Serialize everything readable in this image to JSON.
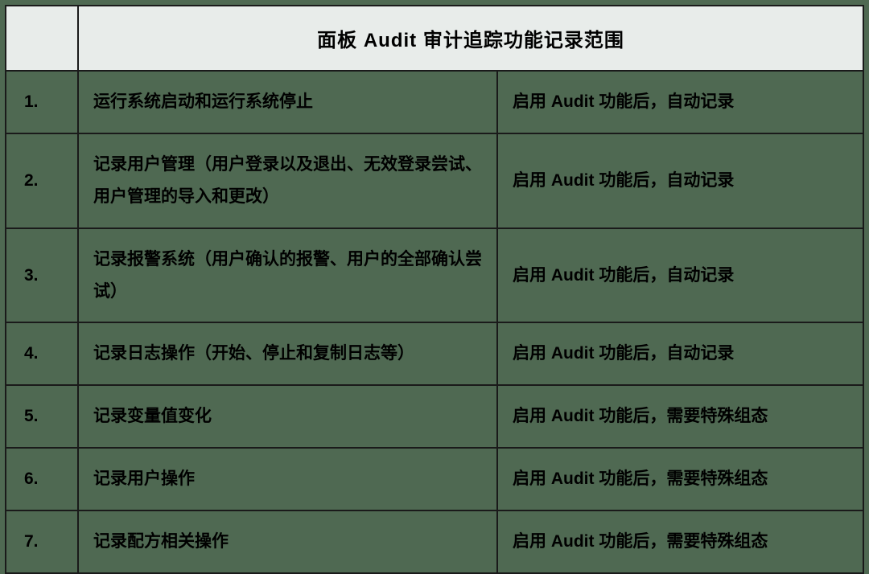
{
  "table": {
    "background_color": "#4f6952",
    "header_background": "#e8ecea",
    "border_color": "#1a1a1a",
    "text_color": "#000000",
    "header_fontsize": 24,
    "body_fontsize": 21,
    "header_title": "面板 Audit 审计追踪功能记录范围",
    "columns": [
      "num",
      "description",
      "condition"
    ],
    "rows": [
      {
        "num": "1.",
        "description": "运行系统启动和运行系统停止",
        "condition": "启用 Audit 功能后，自动记录"
      },
      {
        "num": "2.",
        "description": "记录用户管理（用户登录以及退出、无效登录尝试、用户管理的导入和更改）",
        "condition": "启用 Audit 功能后，自动记录"
      },
      {
        "num": "3.",
        "description": "记录报警系统（用户确认的报警、用户的全部确认尝试）",
        "condition": "启用 Audit 功能后，自动记录"
      },
      {
        "num": "4.",
        "description": "记录日志操作（开始、停止和复制日志等）",
        "condition": "启用 Audit 功能后，自动记录"
      },
      {
        "num": "5.",
        "description": "记录变量值变化",
        "condition": "启用 Audit 功能后，需要特殊组态"
      },
      {
        "num": "6.",
        "description": "记录用户操作",
        "condition": "启用 Audit 功能后，需要特殊组态"
      },
      {
        "num": "7.",
        "description": "记录配方相关操作",
        "condition": "启用 Audit 功能后，需要特殊组态"
      }
    ]
  }
}
